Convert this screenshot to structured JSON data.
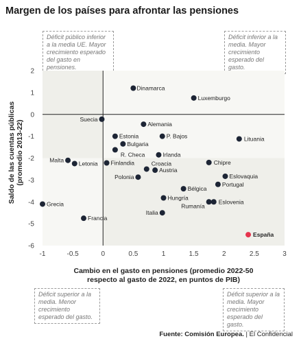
{
  "title": "Margen de los países para afrontar las pensiones",
  "notes": {
    "top_left": "Déficit público inferior a la media UE. Mayor crecimiento esperado del gasto en pensiones.",
    "top_right": "Déficit inferior a la media. Mayor crecimiento esperado del gasto.",
    "bottom_left": "Déficit superior a la media. Menor crecimiento esperado del gasto.",
    "bottom_right": "Déficit superior a la media. Mayor crecimiento esperado del gasto."
  },
  "source": {
    "label": "Fuente: Comisión Europea.",
    "outlet": " | El Confidencial"
  },
  "colors": {
    "dot": "#1d2535",
    "highlight": "#e6344e",
    "shade": "#efefea",
    "shade_light": "#f7f7f4"
  },
  "chart_data": {
    "type": "scatter",
    "title": "Margen de los países para afrontar las pensiones",
    "xlabel": "Cambio en el gasto en pensiones (promedio 2022-50 respecto al gasto de 2022, en puntos de PIB)",
    "ylabel": "Saldo de las cuentas públicas (promedio 2013-22)",
    "xlabel_lines": [
      "Cambio en el gasto en pensiones (promedio 2022-50",
      "respecto al gasto de 2022, en puntos de PIB)"
    ],
    "ylabel_lines": [
      "Saldo de las cuentas públicas",
      "(promedio 2013-22)"
    ],
    "xlim": [
      -1,
      3
    ],
    "ylim": [
      -6,
      2
    ],
    "xticks": [
      -1,
      -0.5,
      0,
      0.5,
      1,
      1.5,
      2,
      2.5,
      3
    ],
    "yticks": [
      2,
      1,
      0,
      -1,
      -2,
      -3,
      -4,
      -5,
      -6
    ],
    "points": [
      {
        "name": "Dinamarca",
        "x": 0.5,
        "y": 1.2
      },
      {
        "name": "Luxemburgo",
        "x": 1.5,
        "y": 0.75
      },
      {
        "name": "Suecia",
        "x": -0.02,
        "y": -0.22
      },
      {
        "name": "Alemania",
        "x": 0.67,
        "y": -0.45
      },
      {
        "name": "Estonia",
        "x": 0.2,
        "y": -1.0
      },
      {
        "name": "P. Bajos",
        "x": 0.98,
        "y": -1.0
      },
      {
        "name": "Lituania",
        "x": 2.25,
        "y": -1.12
      },
      {
        "name": "Bulgaria",
        "x": 0.33,
        "y": -1.35
      },
      {
        "name": "R. Checa",
        "x": 0.2,
        "y": -1.62
      },
      {
        "name": "Irlanda",
        "x": 0.92,
        "y": -1.85
      },
      {
        "name": "Malta",
        "x": -0.58,
        "y": -2.1
      },
      {
        "name": "Letonia",
        "x": -0.47,
        "y": -2.25
      },
      {
        "name": "Finlandia",
        "x": 0.06,
        "y": -2.22
      },
      {
        "name": "Croacia",
        "x": 0.72,
        "y": -2.5
      },
      {
        "name": "Austria",
        "x": 0.86,
        "y": -2.55
      },
      {
        "name": "Chipre",
        "x": 1.75,
        "y": -2.2
      },
      {
        "name": "Eslovaquia",
        "x": 2.02,
        "y": -2.83
      },
      {
        "name": "Polonia",
        "x": 0.58,
        "y": -2.87
      },
      {
        "name": "Portugal",
        "x": 1.9,
        "y": -3.2
      },
      {
        "name": "Bélgica",
        "x": 1.33,
        "y": -3.4
      },
      {
        "name": "Hungría",
        "x": 1.0,
        "y": -3.82
      },
      {
        "name": "Rumanía",
        "x": 1.75,
        "y": -4.0
      },
      {
        "name": "Eslovenia",
        "x": 1.83,
        "y": -4.0
      },
      {
        "name": "Grecia",
        "x": -1.0,
        "y": -4.1
      },
      {
        "name": "Italia",
        "x": 0.98,
        "y": -4.5
      },
      {
        "name": "Francia",
        "x": -0.32,
        "y": -4.75
      },
      {
        "name": "España",
        "x": 2.4,
        "y": -5.5
      }
    ]
  }
}
